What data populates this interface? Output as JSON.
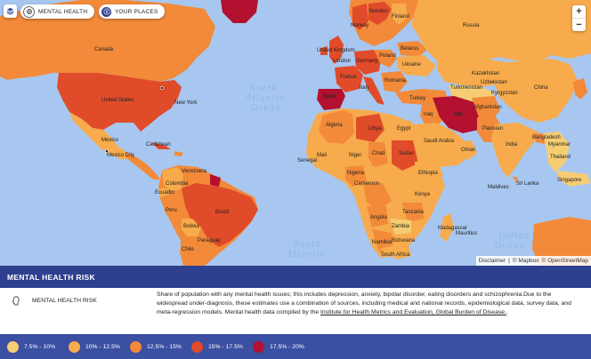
{
  "top_controls": {
    "mental_health_label": "MENTAL HEALTH",
    "your_places_label": "YOUR PLACES"
  },
  "zoom": {
    "in": "+",
    "out": "−"
  },
  "ocean_labels": {
    "north_atlantic_1": "North",
    "north_atlantic_2": "Atlantic",
    "north_atlantic_3": "Ocean",
    "south_atlantic_1": "South",
    "south_atlantic_2": "Atlantic",
    "indian_1": "Indian",
    "indian_2": "Ocean"
  },
  "country_labels": {
    "canada": "Canada",
    "united_states": "United States",
    "new_york": "New York",
    "mexico": "Mexico",
    "mexico_city": "Mexico City",
    "venezuela": "Venezuela",
    "colombia": "Colombia",
    "ecuador": "Ecuador",
    "peru": "Peru",
    "brazil": "Brazil",
    "bolivia": "Bolivia",
    "paraguay": "Paraguay",
    "chile": "Chile",
    "sweden": "Sweden",
    "norway": "Norway",
    "finland": "Finland",
    "united_kingdom": "United Kingdom",
    "london": "London",
    "germany": "Germany",
    "poland": "Poland",
    "ukraine": "Ukraine",
    "belarus": "Belarus",
    "france": "France",
    "spain": "Spain",
    "italy": "Italy",
    "romania": "Romania",
    "turkey": "Turkey",
    "algeria": "Algeria",
    "libya": "Libya",
    "egypt": "Egypt",
    "mali": "Mali",
    "niger": "Niger",
    "chad": "Chad",
    "sudan": "Sudan",
    "senegal": "Senegal",
    "nigeria": "Nigeria",
    "ethiopia": "Ethiopia",
    "cameroon": "Cameroon",
    "kenya": "Kenya",
    "tanzania": "Tanzania",
    "angola": "Angola",
    "zambia": "Zambia",
    "namibia": "Namibia",
    "botswana": "Botswana",
    "south_africa": "South Africa",
    "madagascar": "Madagascar",
    "saudi_arabia": "Saudi Arabia",
    "iran": "Iran",
    "iraq": "Iraq",
    "afghanistan": "Afghanistan",
    "pakistan": "Pakistan",
    "india": "India",
    "oman": "Oman",
    "kazakhstan": "Kazakhstan",
    "turkmenistan": "Turkmenistan",
    "uzbekistan": "Uzbekistan",
    "kyrgyzstan": "Kyrgyzstan",
    "bangladesh": "Bangladesh",
    "myanmar": "Myanmar",
    "thailand": "Thailand",
    "china": "China",
    "maldives": "Maldives",
    "sri_lanka": "Sri Lanka",
    "mauritius": "Mauritius",
    "russia": "Russia",
    "singapore": "Singapore",
    "caribbean": "Caribbean"
  },
  "attribution": {
    "disclaimer": "Disclaimer",
    "sep": "|",
    "mapbox": "© Mapbox",
    "osm": "© OpenStreetMap"
  },
  "panel": {
    "title": "MENTAL HEALTH RISK",
    "risk_label": "MENTAL HEALTH RISK",
    "description_text": "Share of population with any mental health issues; this includes depression, anxiety, bipolar disorder, eating disorders and schizophrenia.Due to the widespread under-diagnosis, these estimates use a combination of sources, including medical and national records, epidemiological data, survey data, and meta-regression models. Mental health data compiled by the ",
    "description_link": "Institute for Health Metrics and Evaluation, Global Burden of Disease.",
    "description_end": "."
  },
  "legend": [
    {
      "label": "7.5% - 10%",
      "color": "#f6cd72"
    },
    {
      "label": "10% - 12.5%",
      "color": "#f7ab4c"
    },
    {
      "label": "12.5% - 15%",
      "color": "#f28a3a"
    },
    {
      "label": "15% - 17.5%",
      "color": "#e04b2a"
    },
    {
      "label": "17.5% - 20%",
      "color": "#b3112f"
    }
  ],
  "colors": {
    "ocean": "#a8c7f0",
    "panel_header": "#2e3f8f",
    "legend_bar": "#3b4fa3"
  }
}
